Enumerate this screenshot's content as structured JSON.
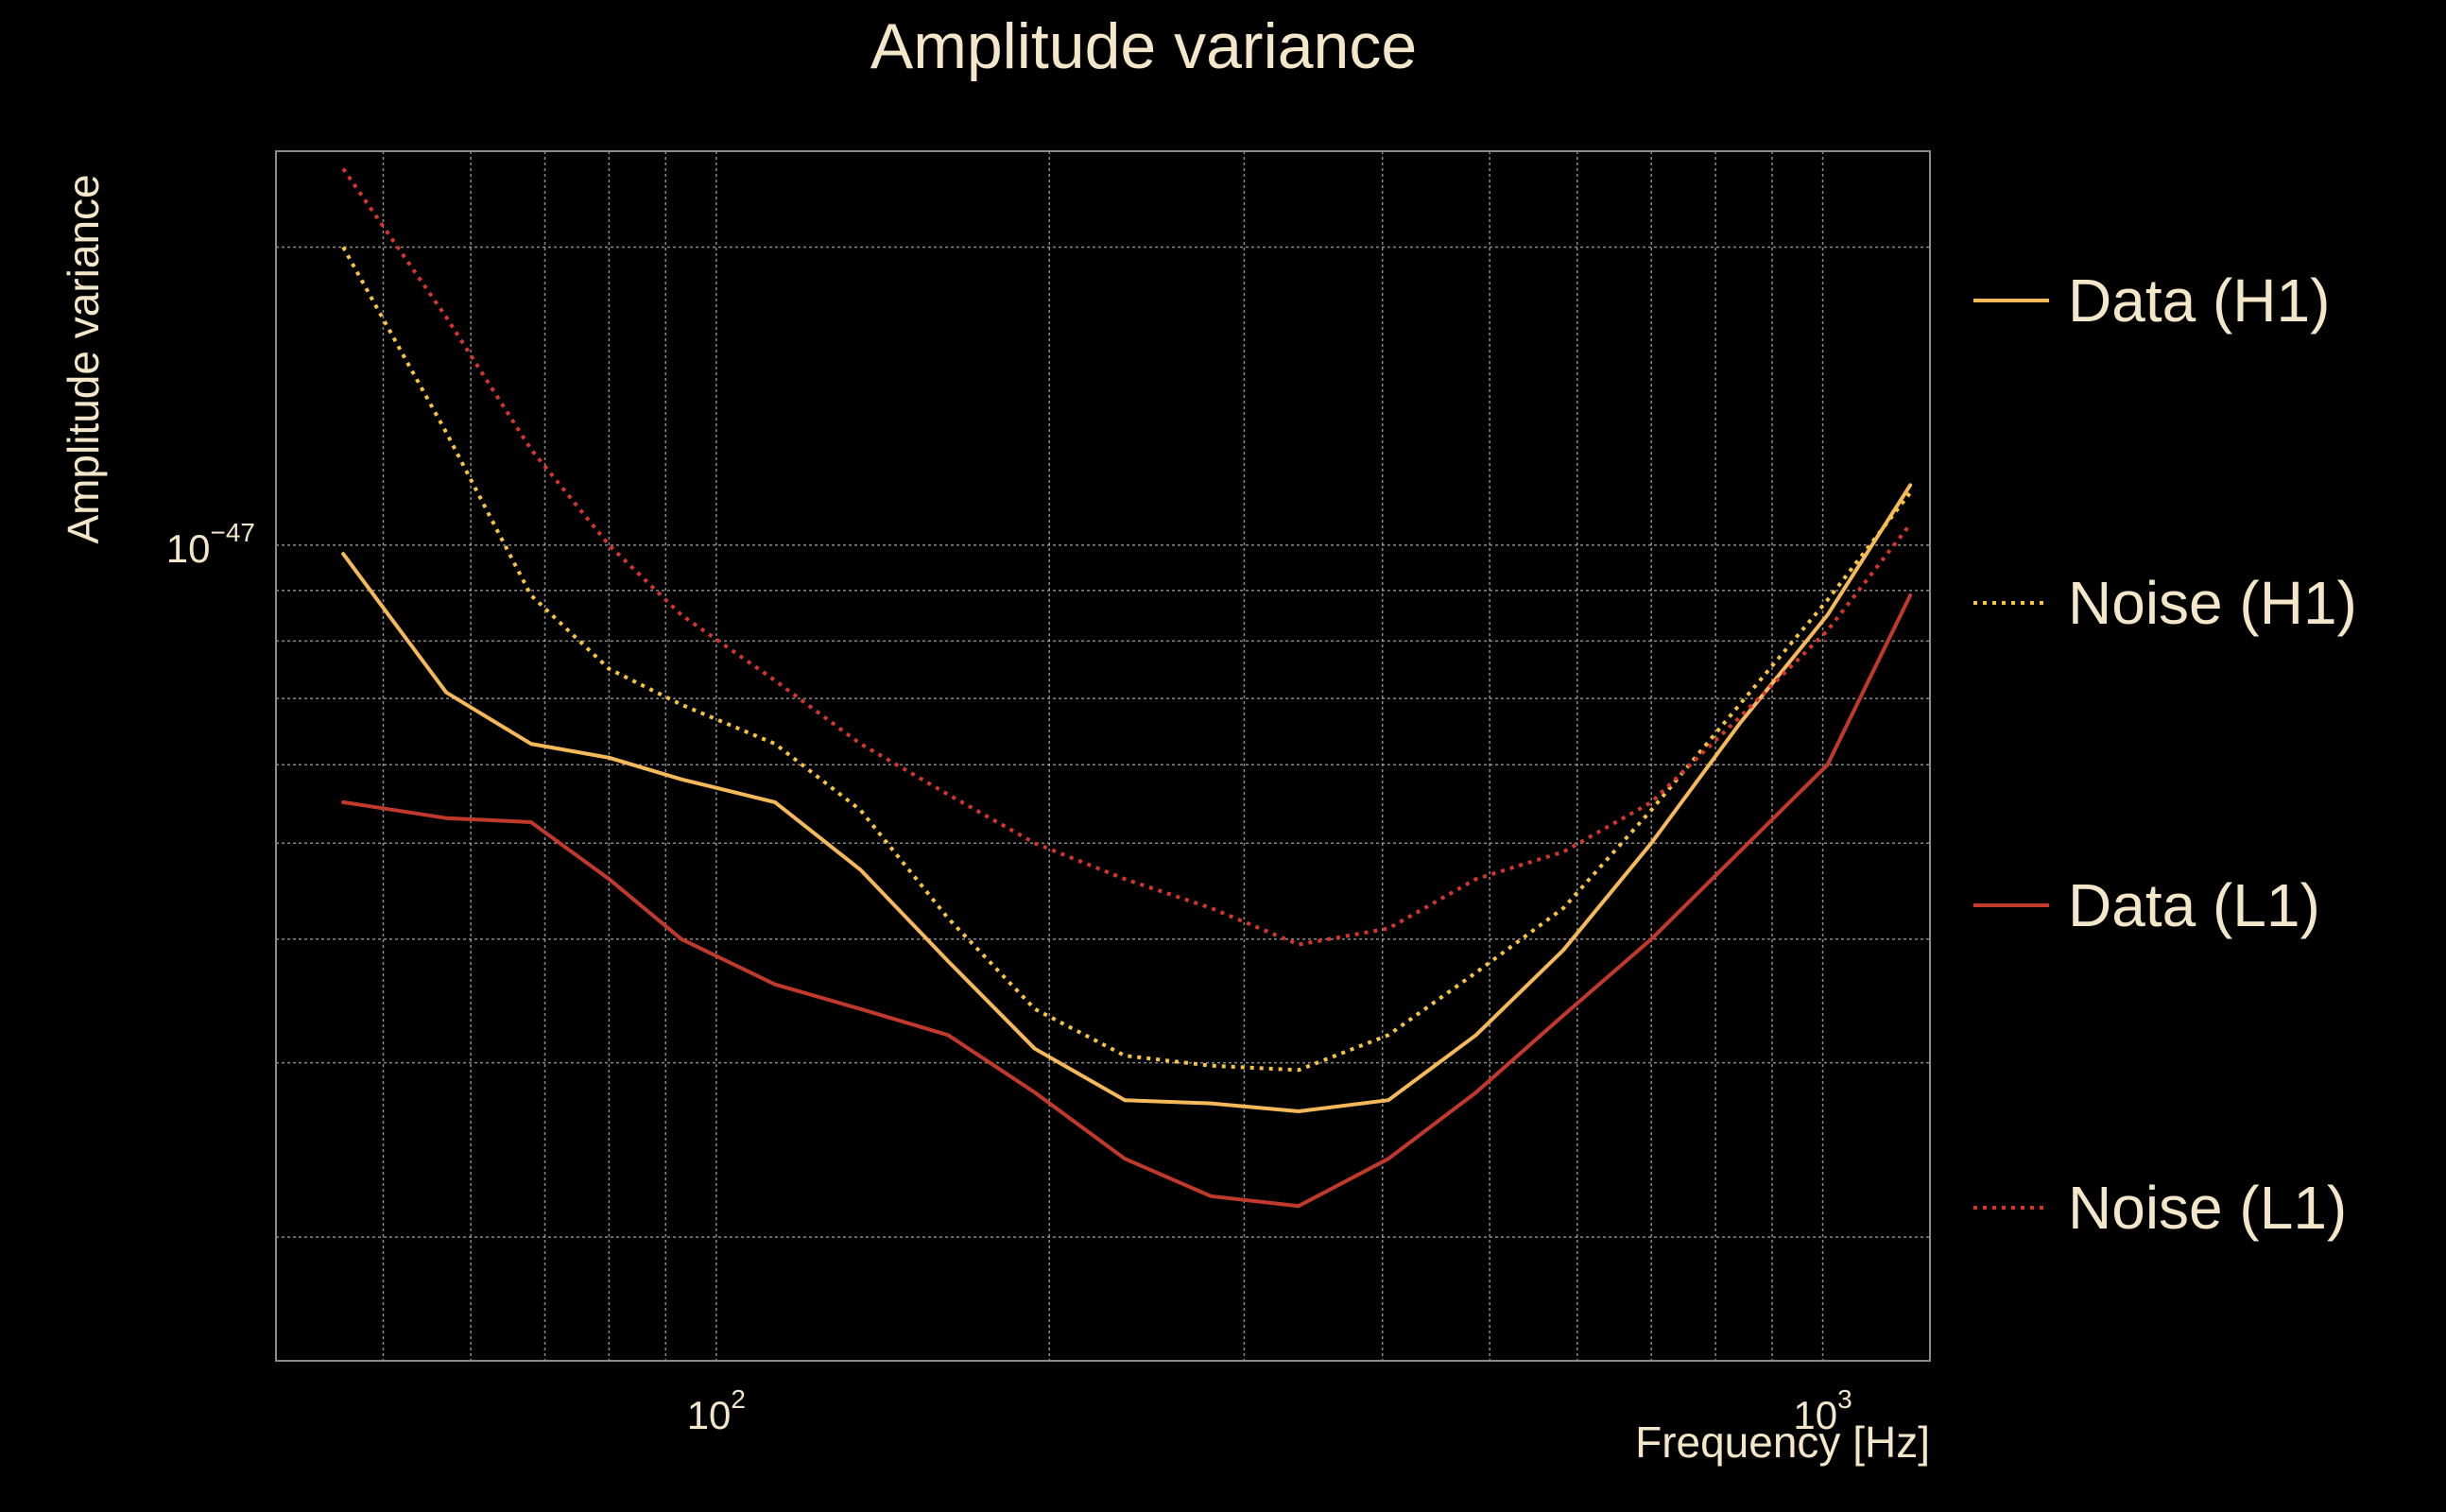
{
  "chart_data": {
    "type": "line",
    "title": "Amplitude variance",
    "xlabel": "Frequency [Hz]",
    "ylabel": "Amplitude variance",
    "xscale": "log",
    "yscale": "log",
    "xlim": [
      40,
      1250
    ],
    "ylim": [
      1.5e-48,
      2.5e-47
    ],
    "x_ticks": [
      {
        "value": 100,
        "base": "10",
        "exp": "2"
      },
      {
        "value": 1000,
        "base": "10",
        "exp": "3"
      }
    ],
    "y_ticks": [
      {
        "value": 1e-47,
        "base": "10",
        "exp": "−47"
      }
    ],
    "grid": true,
    "legend_position": "right",
    "x": [
      46,
      57,
      68,
      80,
      93,
      113,
      135,
      162,
      194,
      234,
      280,
      336,
      405,
      486,
      583,
      700,
      841,
      1010,
      1200
    ],
    "series": [
      {
        "name": "Data (H1)",
        "color": "#f5b95a",
        "style": "solid",
        "values": [
          9.8e-48,
          7.1e-48,
          6.3e-48,
          6.1e-48,
          5.8e-48,
          5.5e-48,
          4.7e-48,
          3.8e-48,
          3.1e-48,
          2.75e-48,
          2.73e-48,
          2.68e-48,
          2.75e-48,
          3.2e-48,
          3.9e-48,
          5e-48,
          6.6e-48,
          8.5e-48,
          1.15e-47
        ]
      },
      {
        "name": "Noise (H1)",
        "color": "#f5c542",
        "style": "dotted",
        "values": [
          2e-47,
          1.3e-47,
          8.9e-48,
          7.5e-48,
          6.9e-48,
          6.3e-48,
          5.4e-48,
          4.2e-48,
          3.4e-48,
          3.05e-48,
          2.98e-48,
          2.95e-48,
          3.2e-48,
          3.7e-48,
          4.3e-48,
          5.4e-48,
          6.9e-48,
          8.8e-48,
          1.13e-47
        ]
      },
      {
        "name": "Data (L1)",
        "color": "#c0392b",
        "style": "solid",
        "values": [
          5.5e-48,
          5.3e-48,
          5.25e-48,
          4.6e-48,
          4e-48,
          3.6e-48,
          3.4e-48,
          3.2e-48,
          2.8e-48,
          2.4e-48,
          2.2e-48,
          2.15e-48,
          2.4e-48,
          2.8e-48,
          3.35e-48,
          4e-48,
          4.9e-48,
          6e-48,
          8.9e-48
        ]
      },
      {
        "name": "Noise (L1)",
        "color": "#d4362e",
        "style": "dotted",
        "values": [
          2.4e-47,
          1.7e-47,
          1.25e-47,
          1e-47,
          8.5e-48,
          7.3e-48,
          6.3e-48,
          5.6e-48,
          5e-48,
          4.6e-48,
          4.3e-48,
          3.95e-48,
          4.1e-48,
          4.6e-48,
          4.9e-48,
          5.5e-48,
          6.7e-48,
          8.2e-48,
          1.05e-47
        ]
      }
    ]
  }
}
